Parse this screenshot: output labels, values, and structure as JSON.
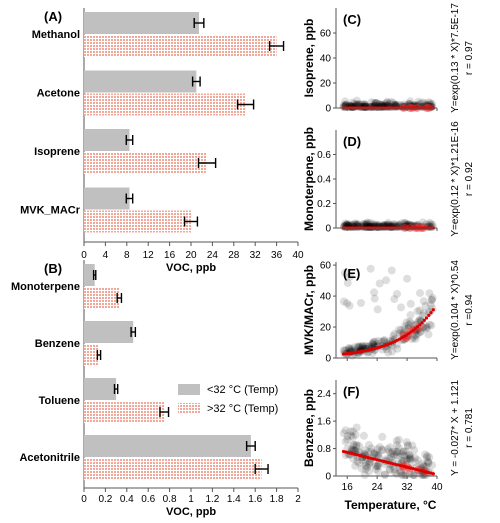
{
  "colors": {
    "low_bar": "#c0c0c0",
    "high_bar": "#f0c0b8",
    "high_bar_grid": "#e07060",
    "scatter_point": "#000000",
    "fit_line": "#dd0000",
    "fit_point_highlight": "#ff3030"
  },
  "legend": {
    "items": [
      "<32 °C  (Temp)",
      ">32 °C  (Temp)"
    ]
  },
  "chart_data": [
    {
      "panel": "(A)",
      "type": "bar",
      "orientation": "horizontal",
      "categories": [
        "Methanol",
        "Acetone",
        "Isoprene",
        "MVK_MACr"
      ],
      "series": [
        {
          "name": "<32 °C  (Temp)",
          "values": [
            21.5,
            21.0,
            8.5,
            8.5
          ],
          "errors": [
            0.9,
            0.7,
            0.6,
            0.6
          ]
        },
        {
          "name": ">32 °C  (Temp)",
          "values": [
            36.0,
            30.2,
            23.0,
            20.0
          ],
          "errors": [
            1.3,
            1.5,
            1.6,
            1.2
          ]
        }
      ],
      "xlabel": "VOC, ppb",
      "xlim": [
        0,
        40
      ],
      "xticks": [
        0,
        4,
        8,
        12,
        16,
        20,
        24,
        28,
        32,
        36,
        40
      ]
    },
    {
      "panel": "(B)",
      "type": "bar",
      "orientation": "horizontal",
      "categories": [
        "Monoterpene",
        "Benzene",
        "Toluene",
        "Acetonitrile"
      ],
      "series": [
        {
          "name": "<32 °C  (Temp)",
          "values": [
            0.1,
            0.46,
            0.3,
            1.56
          ],
          "errors": [
            0.01,
            0.02,
            0.015,
            0.04
          ]
        },
        {
          "name": ">32 °C  (Temp)",
          "values": [
            0.33,
            0.14,
            0.75,
            1.66
          ],
          "errors": [
            0.02,
            0.015,
            0.04,
            0.06
          ]
        }
      ],
      "xlabel": "VOC, ppb",
      "xlim": [
        0,
        2
      ],
      "xticks": [
        "0",
        "0.2",
        "0.4",
        "0.6",
        "0.8",
        "1",
        "1.2",
        "1.4",
        "1.6",
        "1.8",
        "2"
      ]
    },
    {
      "panel": "(C)",
      "type": "scatter",
      "ylabel": "Isoprene, ppb",
      "ylim": [
        0,
        80
      ],
      "yticks": [
        "0",
        "20",
        "40",
        "60"
      ],
      "xlim": [
        13,
        40
      ],
      "fit": {
        "model": "exp",
        "a": 7.5e-17,
        "b": 0.13,
        "c": 0,
        "xmin": 15,
        "xmax": 39
      },
      "equation": "Y=exp(0.13 * X)*7.5E-17",
      "r": "r = 0.97"
    },
    {
      "panel": "(D)",
      "type": "scatter",
      "ylabel": "Monoterpene, ppb",
      "ylim": [
        0,
        0.8
      ],
      "yticks": [
        "0",
        "0.2",
        "0.4",
        "0.6"
      ],
      "xlim": [
        13,
        40
      ],
      "fit": {
        "model": "exp",
        "a": 1.21e-16,
        "b": 0.12,
        "c": 0,
        "xmin": 15,
        "xmax": 39
      },
      "equation": "Y=exp(0.12 * X)*1.21E-16",
      "r": "r = 0.92"
    },
    {
      "panel": "(E)",
      "type": "scatter",
      "ylabel": "MVK/MACr, ppb",
      "ylim": [
        0,
        62
      ],
      "yticks": [
        "0",
        "20",
        "40",
        "60"
      ],
      "xlim": [
        13,
        40
      ],
      "fit": {
        "model": "exp",
        "a": 0.54,
        "b": 0.104,
        "c": 0,
        "xmin": 15,
        "xmax": 39
      },
      "equation": "Y=exp(0.104 * X)*0.54",
      "r": "r =0.94"
    },
    {
      "panel": "(F)",
      "type": "scatter",
      "ylabel": "Benzene, ppb",
      "ylim": [
        0,
        2.8
      ],
      "yticks": [
        "0",
        "0.8",
        "1.6",
        "2.4"
      ],
      "xlim": [
        13,
        40
      ],
      "xticks": [
        "16",
        "24",
        "32",
        "40"
      ],
      "xlabel": "Temperature,  °C",
      "fit": {
        "model": "linear",
        "a": -0.027,
        "c": 1.121,
        "xmin": 15,
        "xmax": 39
      },
      "equation": "Y = -0.027* X + 1.121",
      "r": "r = 0.781"
    }
  ]
}
